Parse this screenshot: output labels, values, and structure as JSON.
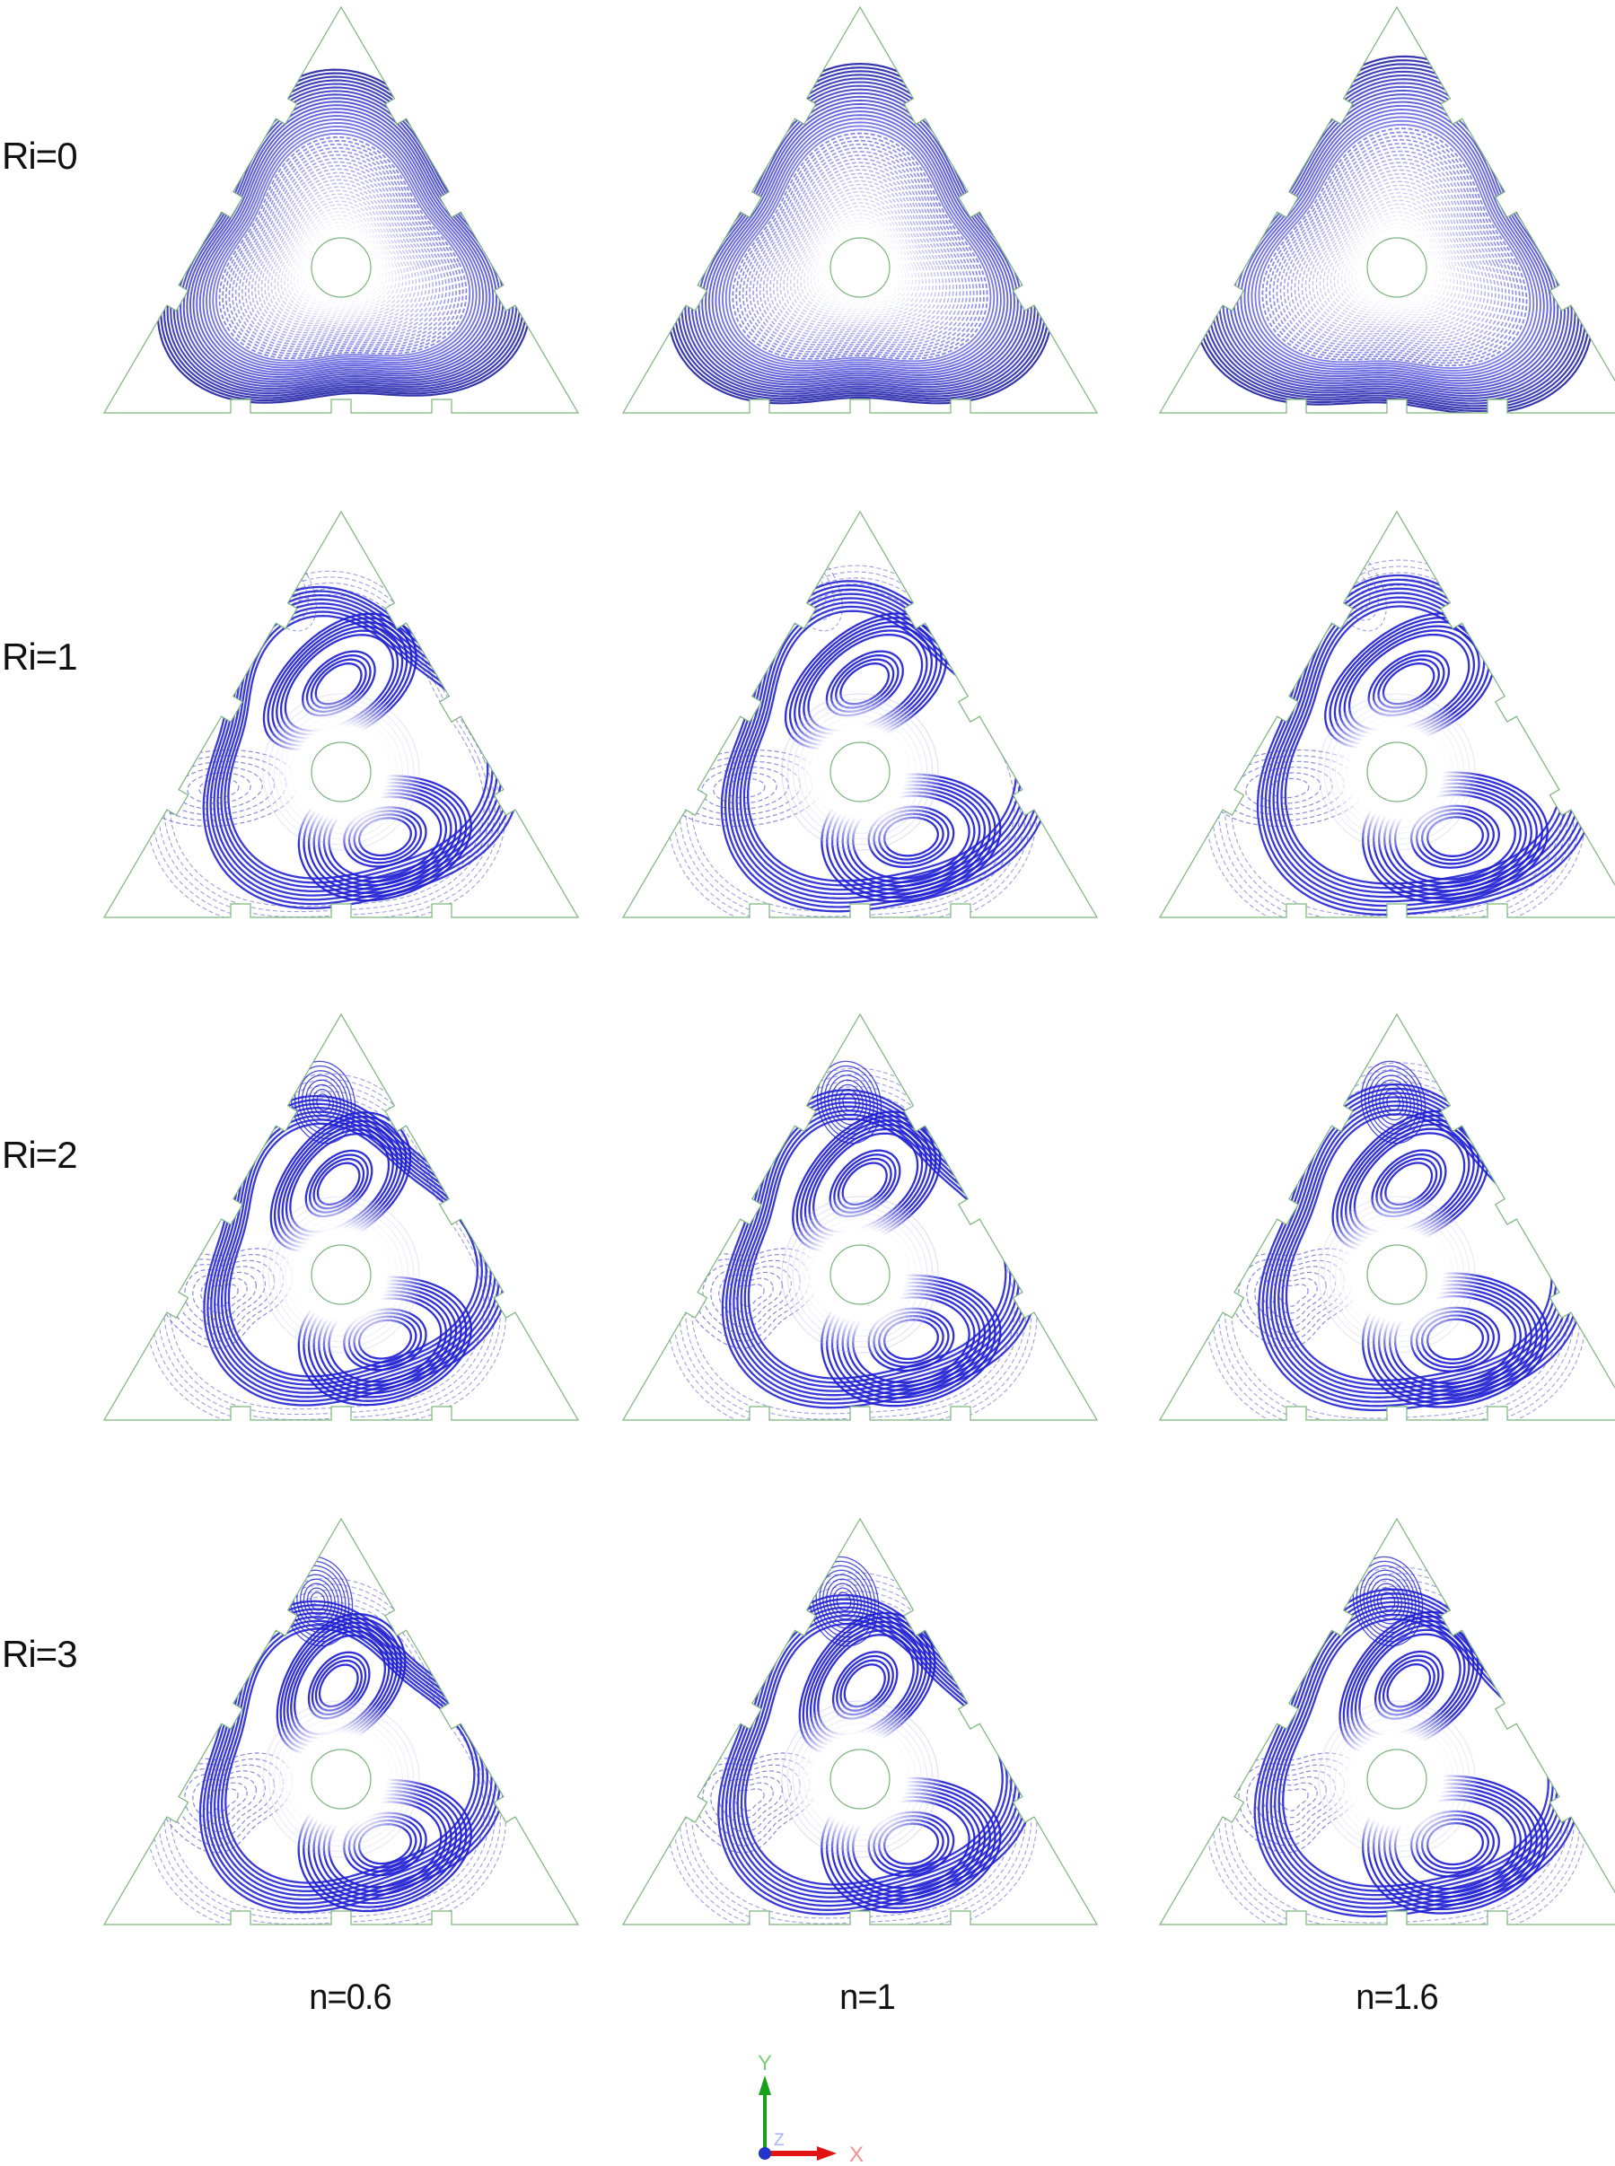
{
  "figure": {
    "row_labels": [
      "Ri=0",
      "Ri=1",
      "Ri=2",
      "Ri=3"
    ],
    "col_labels": [
      "n=0.6",
      "n=1",
      "n=1.6"
    ],
    "axis": {
      "x": "X",
      "y": "Y",
      "z": "Z"
    },
    "colors": {
      "streamline_dark": "#1e1ed2",
      "streamline_mid": "#4040c4",
      "streamline_light": "#9d9de4",
      "domain_outline": "#7cb47c",
      "label_text": "#111111",
      "axis_x": "#e11414",
      "axis_x_label": "#f08f8f",
      "axis_y": "#18a018",
      "axis_y_label": "#79cf79",
      "axis_z": "#2433c8",
      "axis_z_label": "#96a6ef"
    }
  }
}
